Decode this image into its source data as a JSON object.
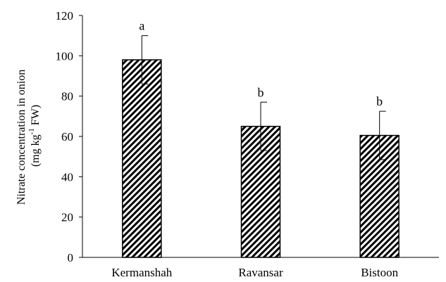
{
  "chart_data": {
    "type": "bar",
    "title": "",
    "xlabel": "",
    "ylabel_line1": "Nitrate concentration in onion",
    "ylabel_line2_prefix": "(mg kg",
    "ylabel_line2_sup": "-1",
    "ylabel_line2_suffix": " FW)",
    "categories": [
      "Kermanshah",
      "Ravansar",
      "Bistoon"
    ],
    "values": [
      98,
      65,
      60.5
    ],
    "errors": [
      12,
      12,
      12
    ],
    "letters": [
      "a",
      "b",
      "b"
    ],
    "ylim": [
      0,
      120
    ],
    "yticks": [
      0,
      20,
      40,
      60,
      80,
      100,
      120
    ],
    "grid": false,
    "legend": "none",
    "bar_fill_pattern": "diagonal-hatch",
    "colors": {
      "hatch": "#000000",
      "background": "#ffffff",
      "axis": "#000000"
    }
  }
}
